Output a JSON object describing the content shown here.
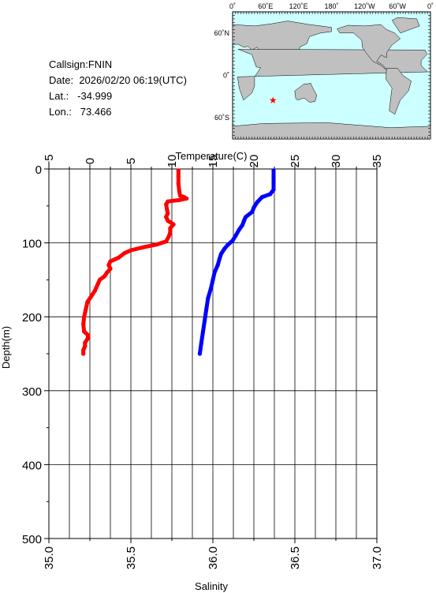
{
  "station": {
    "callsign_label": "Callsign:",
    "callsign": "FNIN",
    "date_label": "Date:",
    "date": "2026/02/20 06:19(UTC)",
    "lat_label": "Lat.:",
    "lat": "-34.999",
    "lon_label": "Lon.:",
    "lon": "73.466"
  },
  "map": {
    "lon_ticks": [
      "0˚",
      "60˚E",
      "120˚E",
      "180˚",
      "120˚W",
      "60˚W",
      "0˚"
    ],
    "lat_ticks": [
      "60˚N",
      "0˚",
      "60˚S"
    ],
    "ocean_color": "#ccffff",
    "land_color": "#c0c0c0",
    "marker_color": "#ff0000",
    "marker": {
      "lon": 73.466,
      "lat": -34.999
    }
  },
  "chart_data": {
    "type": "line",
    "top_axis": {
      "label": "Temperature(C)",
      "range": [
        -5,
        35
      ],
      "ticks": [
        -5,
        0,
        5,
        10,
        15,
        20,
        25,
        30,
        35
      ]
    },
    "bottom_axis": {
      "label": "Salinity",
      "range": [
        35.0,
        37.0
      ],
      "ticks": [
        "35.0",
        "35.5",
        "36.0",
        "36.5",
        "37.0"
      ]
    },
    "y_axis": {
      "label": "Depth(m)",
      "range": [
        0,
        500
      ],
      "inverted": true,
      "ticks": [
        0,
        100,
        200,
        300,
        400,
        500
      ]
    },
    "grid": true,
    "series": [
      {
        "axis": "temperature",
        "color": "#ff0000",
        "points": [
          [
            10.8,
            2
          ],
          [
            10.8,
            10
          ],
          [
            10.8,
            20
          ],
          [
            10.9,
            30
          ],
          [
            11.0,
            36
          ],
          [
            11.5,
            38
          ],
          [
            11.8,
            40
          ],
          [
            10.9,
            42
          ],
          [
            9.5,
            44
          ],
          [
            9.3,
            48
          ],
          [
            9.4,
            55
          ],
          [
            9.5,
            60
          ],
          [
            9.3,
            65
          ],
          [
            9.5,
            70
          ],
          [
            9.8,
            72
          ],
          [
            10.2,
            75
          ],
          [
            9.8,
            80
          ],
          [
            9.8,
            86
          ],
          [
            9.6,
            92
          ],
          [
            9.3,
            98
          ],
          [
            8.2,
            102
          ],
          [
            6.5,
            106
          ],
          [
            5.0,
            110
          ],
          [
            4.2,
            114
          ],
          [
            3.5,
            120
          ],
          [
            2.5,
            125
          ],
          [
            2.3,
            130
          ],
          [
            2.5,
            135
          ],
          [
            2.1,
            140
          ],
          [
            1.8,
            145
          ],
          [
            1.2,
            150
          ],
          [
            1.0,
            155
          ],
          [
            0.8,
            160
          ],
          [
            0.6,
            165
          ],
          [
            0.3,
            170
          ],
          [
            0.0,
            175
          ],
          [
            -0.3,
            180
          ],
          [
            -0.5,
            190
          ],
          [
            -0.7,
            200
          ],
          [
            -0.8,
            210
          ],
          [
            -0.7,
            220
          ],
          [
            -0.2,
            225
          ],
          [
            -0.3,
            230
          ],
          [
            -0.6,
            235
          ],
          [
            -0.6,
            240
          ],
          [
            -0.8,
            245
          ],
          [
            -0.8,
            250
          ]
        ]
      },
      {
        "axis": "salinity",
        "color": "#0000ff",
        "points": [
          [
            36.37,
            2
          ],
          [
            36.37,
            10
          ],
          [
            36.37,
            20
          ],
          [
            36.37,
            28
          ],
          [
            36.35,
            34
          ],
          [
            36.3,
            38
          ],
          [
            36.27,
            45
          ],
          [
            36.25,
            52
          ],
          [
            36.24,
            58
          ],
          [
            36.2,
            65
          ],
          [
            36.19,
            70
          ],
          [
            36.18,
            76
          ],
          [
            36.16,
            82
          ],
          [
            36.14,
            90
          ],
          [
            36.12,
            97
          ],
          [
            36.09,
            103
          ],
          [
            36.07,
            108
          ],
          [
            36.05,
            115
          ],
          [
            36.04,
            122
          ],
          [
            36.03,
            130
          ],
          [
            36.01,
            140
          ],
          [
            36.0,
            150
          ],
          [
            35.99,
            160
          ],
          [
            35.97,
            175
          ],
          [
            35.96,
            190
          ],
          [
            35.95,
            205
          ],
          [
            35.94,
            220
          ],
          [
            35.93,
            235
          ],
          [
            35.92,
            250
          ]
        ]
      }
    ]
  }
}
